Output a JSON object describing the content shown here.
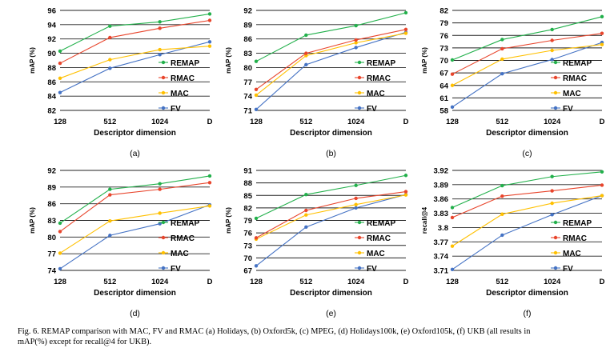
{
  "caption": {
    "line1": "Fig. 6.   REMAP comparison with MAC, FV and RMAC (a) Holidays, (b) Oxford5k, (c) MPEG, (d) Holidays100k, (e) Oxford105k, (f) UKB (all results in",
    "line2": "mAP(%) except for recall@4 for UKB)."
  },
  "colors": {
    "REMAP": "#22b04b",
    "RMAC": "#e8452c",
    "MAC": "#ffc000",
    "FV": "#4472c4"
  },
  "chart_data": [
    {
      "type": "line",
      "panel_label": "(a)",
      "categories": [
        "128",
        "512",
        "1024",
        "D"
      ],
      "xlabel": "Descriptor dimension",
      "ylabel": "mAP (%)",
      "ylim": [
        82,
        96
      ],
      "yticks": [
        "82",
        "84",
        "86",
        "88",
        "90",
        "92",
        "94",
        "96"
      ],
      "grid": true,
      "legend": "right",
      "series": [
        {
          "name": "REMAP",
          "values": [
            90.3,
            93.8,
            94.4,
            95.5
          ]
        },
        {
          "name": "RMAC",
          "values": [
            88.6,
            92.2,
            93.5,
            94.6
          ]
        },
        {
          "name": "MAC",
          "values": [
            86.5,
            89.1,
            90.5,
            91.0
          ]
        },
        {
          "name": "FV",
          "values": [
            84.5,
            87.9,
            89.8,
            91.6
          ]
        }
      ]
    },
    {
      "type": "line",
      "panel_label": "(b)",
      "categories": [
        "128",
        "512",
        "1024",
        "D"
      ],
      "xlabel": "Descriptor dimension",
      "ylabel": "mAP (%)",
      "ylim": [
        71,
        92
      ],
      "yticks": [
        "71",
        "74",
        "77",
        "80",
        "83",
        "86",
        "89",
        "92"
      ],
      "grid": true,
      "legend": "right",
      "series": [
        {
          "name": "REMAP",
          "values": [
            81.3,
            86.8,
            88.8,
            91.5
          ]
        },
        {
          "name": "RMAC",
          "values": [
            75.4,
            83.0,
            85.8,
            88.0
          ]
        },
        {
          "name": "MAC",
          "values": [
            74.2,
            82.5,
            85.2,
            87.2
          ]
        },
        {
          "name": "FV",
          "values": [
            71.2,
            80.6,
            84.2,
            87.4
          ]
        }
      ]
    },
    {
      "type": "line",
      "panel_label": "(c)",
      "categories": [
        "128",
        "512",
        "1024",
        "D"
      ],
      "xlabel": "Descriptor dimension",
      "ylabel": "mAP (%)",
      "ylim": [
        58,
        82
      ],
      "yticks": [
        "58",
        "61",
        "64",
        "67",
        "70",
        "73",
        "76",
        "79",
        "82"
      ],
      "grid": true,
      "legend": "right",
      "series": [
        {
          "name": "REMAP",
          "values": [
            70.1,
            75.0,
            77.4,
            80.5
          ]
        },
        {
          "name": "RMAC",
          "values": [
            66.7,
            72.8,
            74.8,
            76.5
          ]
        },
        {
          "name": "MAC",
          "values": [
            64.0,
            70.3,
            72.4,
            73.8
          ]
        },
        {
          "name": "FV",
          "values": [
            58.8,
            66.8,
            70.2,
            74.3
          ]
        }
      ]
    },
    {
      "type": "line",
      "panel_label": "(d)",
      "categories": [
        "128",
        "512",
        "1024",
        "D"
      ],
      "xlabel": "Descriptor dimension",
      "ylabel": "mAP (%)",
      "ylim": [
        74,
        92
      ],
      "yticks": [
        "74",
        "77",
        "80",
        "83",
        "86",
        "89",
        "92"
      ],
      "grid": true,
      "legend": "right",
      "series": [
        {
          "name": "REMAP",
          "values": [
            82.5,
            88.6,
            89.6,
            91.0
          ]
        },
        {
          "name": "RMAC",
          "values": [
            81.0,
            87.6,
            88.6,
            89.8
          ]
        },
        {
          "name": "MAC",
          "values": [
            77.1,
            82.9,
            84.3,
            85.6
          ]
        },
        {
          "name": "FV",
          "values": [
            74.3,
            80.3,
            82.4,
            85.8
          ]
        }
      ]
    },
    {
      "type": "line",
      "panel_label": "(e)",
      "categories": [
        "128",
        "512",
        "1024",
        "D"
      ],
      "xlabel": "Descriptor dimension",
      "ylabel": "mAP (%)",
      "ylim": [
        67,
        91
      ],
      "yticks": [
        "67",
        "70",
        "73",
        "76",
        "79",
        "82",
        "85",
        "88",
        "91"
      ],
      "grid": true,
      "legend": "right",
      "series": [
        {
          "name": "REMAP",
          "values": [
            79.5,
            85.2,
            87.4,
            89.8
          ]
        },
        {
          "name": "RMAC",
          "values": [
            74.8,
            81.4,
            84.3,
            85.9
          ]
        },
        {
          "name": "MAC",
          "values": [
            74.5,
            80.3,
            82.8,
            85.1
          ]
        },
        {
          "name": "FV",
          "values": [
            68.1,
            77.4,
            82.0,
            85.2
          ]
        }
      ]
    },
    {
      "type": "line",
      "panel_label": "(f)",
      "categories": [
        "128",
        "512",
        "1024",
        "D"
      ],
      "xlabel": "Descriptor dimension",
      "ylabel": "recall@4",
      "ylim": [
        3.71,
        3.92
      ],
      "yticks": [
        "3.71",
        "3.74",
        "3.77",
        "3.8",
        "3.83",
        "3.86",
        "3.89",
        "3.92"
      ],
      "grid": true,
      "legend": "right",
      "series": [
        {
          "name": "REMAP",
          "values": [
            3.842,
            3.888,
            3.907,
            3.917
          ]
        },
        {
          "name": "RMAC",
          "values": [
            3.821,
            3.866,
            3.877,
            3.889
          ]
        },
        {
          "name": "MAC",
          "values": [
            3.761,
            3.828,
            3.851,
            3.867
          ]
        },
        {
          "name": "FV",
          "values": [
            3.712,
            3.784,
            3.827,
            3.867
          ]
        }
      ]
    }
  ]
}
